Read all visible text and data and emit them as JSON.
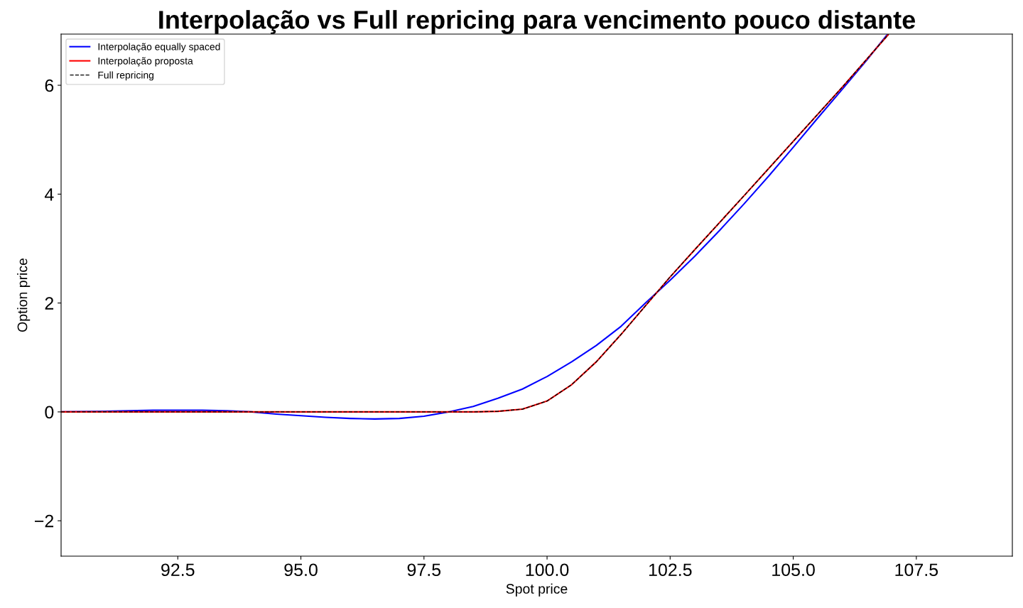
{
  "chart_data": {
    "type": "line",
    "title": "Interpolação vs Full repricing para vencimento pouco distante",
    "xlabel": "Spot price",
    "ylabel": "Option price",
    "xlim": [
      90.13,
      109.45
    ],
    "ylim": [
      -2.65,
      6.94
    ],
    "xticks": [
      92.5,
      {
        "value": 95,
        "label": "95.0"
      },
      97.5,
      {
        "value": 100,
        "label": "100.0"
      },
      102.5,
      {
        "value": 105,
        "label": "105.0"
      },
      107.5
    ],
    "yticks": [
      {
        "value": -2,
        "label": "−2"
      },
      0,
      2,
      4,
      6
    ],
    "grid": false,
    "legend": "top left",
    "series": [
      {
        "name": "Interpolação equally spaced",
        "color": "#0000ff",
        "line_style": "solid",
        "x": [
          90.13,
          91.0,
          92.0,
          92.5,
          93.0,
          93.5,
          94.0,
          94.5,
          95.0,
          95.5,
          96.0,
          96.5,
          97.0,
          97.5,
          98.0,
          98.5,
          99.0,
          99.5,
          100.0,
          100.5,
          101.0,
          101.5,
          102.0,
          102.5,
          103.0,
          103.5,
          104.0,
          104.5,
          105.0,
          105.5,
          106.0,
          106.5,
          106.9
        ],
        "values": [
          0.0,
          0.01,
          0.03,
          0.03,
          0.03,
          0.02,
          0.0,
          -0.04,
          -0.07,
          -0.1,
          -0.12,
          -0.13,
          -0.12,
          -0.08,
          0.0,
          0.1,
          0.25,
          0.42,
          0.65,
          0.92,
          1.22,
          1.57,
          2.0,
          2.42,
          2.86,
          3.33,
          3.82,
          4.33,
          4.86,
          5.4,
          5.93,
          6.47,
          6.92
        ]
      },
      {
        "name": "Interpolação proposta",
        "color": "#ff0000",
        "line_style": "solid",
        "x": [
          90.13,
          98.5,
          99.0,
          99.5,
          100.0,
          100.5,
          101.0,
          101.5,
          102.0,
          102.5,
          103.0,
          104.0,
          105.0,
          106.0,
          106.93
        ],
        "values": [
          0.0,
          0.0,
          0.01,
          0.05,
          0.2,
          0.5,
          0.92,
          1.42,
          1.95,
          2.48,
          2.98,
          3.97,
          4.97,
          5.97,
          6.93
        ]
      },
      {
        "name": "Full repricing",
        "color": "#000000",
        "line_style": "dashed",
        "x": [
          90.13,
          98.5,
          99.0,
          99.5,
          100.0,
          100.5,
          101.0,
          101.5,
          102.0,
          102.5,
          103.0,
          104.0,
          105.0,
          106.0,
          106.93
        ],
        "values": [
          0.0,
          0.0,
          0.01,
          0.05,
          0.2,
          0.5,
          0.92,
          1.42,
          1.95,
          2.48,
          2.98,
          3.97,
          4.97,
          5.97,
          6.93
        ]
      }
    ]
  }
}
